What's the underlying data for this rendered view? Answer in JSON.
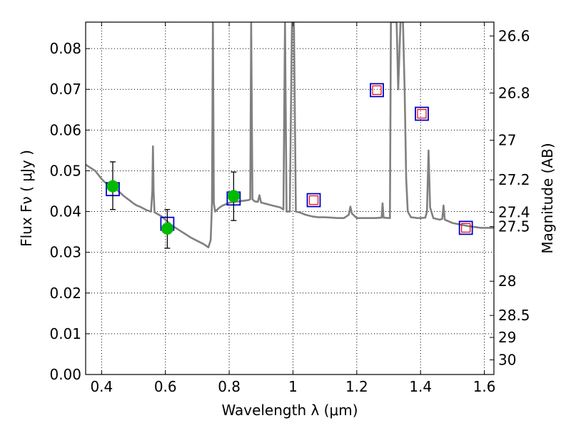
{
  "chart_data": {
    "type": "scatter",
    "xlabel": "Wavelength  λ (μm)",
    "ylabel": "Flux  Fν  ( μJy )",
    "y2label": "Magnitude (AB)",
    "xlim": [
      0.35,
      1.63
    ],
    "ylim": [
      0.0,
      0.0865
    ],
    "grid": true,
    "x_ticks": [
      0.4,
      0.6,
      0.8,
      1.0,
      1.2,
      1.4,
      1.6
    ],
    "x_tick_labels": [
      "0.4",
      "0.6",
      "0.8",
      "1",
      "1.2",
      "1.4",
      "1.6"
    ],
    "y_ticks": [
      0.0,
      0.01,
      0.02,
      0.03,
      0.04,
      0.05,
      0.06,
      0.07,
      0.08
    ],
    "y_tick_labels": [
      "0.00",
      "0.01",
      "0.02",
      "0.03",
      "0.04",
      "0.05",
      "0.06",
      "0.07",
      "0.08"
    ],
    "mag_ticks": [
      {
        "flux": 0.0831,
        "label": "26.6"
      },
      {
        "flux": 0.0691,
        "label": "26.8"
      },
      {
        "flux": 0.0575,
        "label": "27"
      },
      {
        "flux": 0.0478,
        "label": "27.2"
      },
      {
        "flux": 0.0398,
        "label": "27.4"
      },
      {
        "flux": 0.0363,
        "label": "27.5"
      },
      {
        "flux": 0.0229,
        "label": "28"
      },
      {
        "flux": 0.0145,
        "label": "28.5"
      },
      {
        "flux": 0.0091,
        "label": "29"
      },
      {
        "flux": 0.0036,
        "label": "30"
      }
    ],
    "template_spectrum": {
      "name": "",
      "color": "#808080",
      "points": [
        [
          0.35,
          0.0515
        ],
        [
          0.36,
          0.051
        ],
        [
          0.37,
          0.0505
        ],
        [
          0.38,
          0.05
        ],
        [
          0.39,
          0.049
        ],
        [
          0.4,
          0.048
        ],
        [
          0.41,
          0.0472
        ],
        [
          0.42,
          0.0467
        ],
        [
          0.43,
          0.0462
        ],
        [
          0.44,
          0.0458
        ],
        [
          0.45,
          0.0452
        ],
        [
          0.46,
          0.0445
        ],
        [
          0.47,
          0.0438
        ],
        [
          0.48,
          0.0432
        ],
        [
          0.49,
          0.0426
        ],
        [
          0.5,
          0.042
        ],
        [
          0.51,
          0.0415
        ],
        [
          0.52,
          0.0412
        ],
        [
          0.53,
          0.0408
        ],
        [
          0.54,
          0.0404
        ],
        [
          0.55,
          0.0401
        ],
        [
          0.555,
          0.04
        ],
        [
          0.559,
          0.045
        ],
        [
          0.561,
          0.056
        ],
        [
          0.563,
          0.045
        ],
        [
          0.566,
          0.0398
        ],
        [
          0.58,
          0.0392
        ],
        [
          0.59,
          0.0387
        ],
        [
          0.6,
          0.038
        ],
        [
          0.62,
          0.0366
        ],
        [
          0.64,
          0.0356
        ],
        [
          0.66,
          0.0346
        ],
        [
          0.68,
          0.0336
        ],
        [
          0.7,
          0.0328
        ],
        [
          0.72,
          0.032
        ],
        [
          0.735,
          0.0312
        ],
        [
          0.742,
          0.033
        ],
        [
          0.746,
          0.042
        ],
        [
          0.749,
          0.0865
        ],
        [
          0.752,
          0.042
        ],
        [
          0.756,
          0.04
        ],
        [
          0.77,
          0.041
        ],
        [
          0.78,
          0.0415
        ],
        [
          0.79,
          0.0418
        ],
        [
          0.8,
          0.0422
        ],
        [
          0.82,
          0.0424
        ],
        [
          0.84,
          0.0426
        ],
        [
          0.86,
          0.0428
        ],
        [
          0.866,
          0.043
        ],
        [
          0.869,
          0.0865
        ],
        [
          0.873,
          0.043
        ],
        [
          0.88,
          0.0425
        ],
        [
          0.89,
          0.0424
        ],
        [
          0.895,
          0.044
        ],
        [
          0.9,
          0.0422
        ],
        [
          0.92,
          0.0418
        ],
        [
          0.94,
          0.0414
        ],
        [
          0.96,
          0.041
        ],
        [
          0.97,
          0.0405
        ],
        [
          0.975,
          0.0865
        ],
        [
          0.98,
          0.04
        ],
        [
          0.99,
          0.04
        ],
        [
          0.997,
          0.0865
        ],
        [
          1.003,
          0.0865
        ],
        [
          1.009,
          0.04
        ],
        [
          1.02,
          0.0398
        ],
        [
          1.04,
          0.0392
        ],
        [
          1.06,
          0.0388
        ],
        [
          1.08,
          0.0386
        ],
        [
          1.1,
          0.0386
        ],
        [
          1.12,
          0.0385
        ],
        [
          1.14,
          0.0384
        ],
        [
          1.16,
          0.0384
        ],
        [
          1.175,
          0.0392
        ],
        [
          1.18,
          0.0412
        ],
        [
          1.185,
          0.0395
        ],
        [
          1.2,
          0.0384
        ],
        [
          1.22,
          0.0384
        ],
        [
          1.24,
          0.0384
        ],
        [
          1.25,
          0.0384
        ],
        [
          1.26,
          0.0384
        ],
        [
          1.278,
          0.0385
        ],
        [
          1.281,
          0.042
        ],
        [
          1.284,
          0.0385
        ],
        [
          1.3,
          0.0384
        ],
        [
          1.304,
          0.0384
        ],
        [
          1.307,
          0.0865
        ],
        [
          1.325,
          0.0865
        ],
        [
          1.33,
          0.07
        ],
        [
          1.337,
          0.0865
        ],
        [
          1.345,
          0.0865
        ],
        [
          1.35,
          0.07
        ],
        [
          1.355,
          0.048
        ],
        [
          1.36,
          0.04
        ],
        [
          1.37,
          0.0386
        ],
        [
          1.38,
          0.0385
        ],
        [
          1.39,
          0.0384
        ],
        [
          1.4,
          0.0384
        ],
        [
          1.415,
          0.0385
        ],
        [
          1.42,
          0.04
        ],
        [
          1.425,
          0.055
        ],
        [
          1.43,
          0.041
        ],
        [
          1.44,
          0.0384
        ],
        [
          1.46,
          0.038
        ],
        [
          1.468,
          0.0382
        ],
        [
          1.472,
          0.0415
        ],
        [
          1.476,
          0.038
        ],
        [
          1.5,
          0.0372
        ],
        [
          1.53,
          0.0367
        ],
        [
          1.56,
          0.0363
        ],
        [
          1.59,
          0.036
        ],
        [
          1.63,
          0.036
        ]
      ]
    },
    "model_photometry": {
      "name": "",
      "color": "#0000cc",
      "points": [
        [
          0.435,
          0.0455
        ],
        [
          0.606,
          0.037
        ],
        [
          0.814,
          0.0432
        ],
        [
          1.065,
          0.0428
        ],
        [
          1.263,
          0.0698
        ],
        [
          1.404,
          0.064
        ],
        [
          1.542,
          0.036
        ]
      ]
    },
    "predicted_photometry": {
      "name": "",
      "color": "#ff0000",
      "points": [
        [
          1.065,
          0.0428
        ],
        [
          1.263,
          0.0698
        ],
        [
          1.404,
          0.064
        ],
        [
          1.542,
          0.036
        ]
      ]
    },
    "observed_photometry": {
      "name": "",
      "color": "#00bb00",
      "points": [
        {
          "x": 0.435,
          "y": 0.0462,
          "err_low": 0.0405,
          "err_high": 0.0522
        },
        {
          "x": 0.606,
          "y": 0.0358,
          "err_low": 0.031,
          "err_high": 0.0405
        },
        {
          "x": 0.814,
          "y": 0.0438,
          "err_low": 0.0378,
          "err_high": 0.0497
        }
      ]
    }
  }
}
